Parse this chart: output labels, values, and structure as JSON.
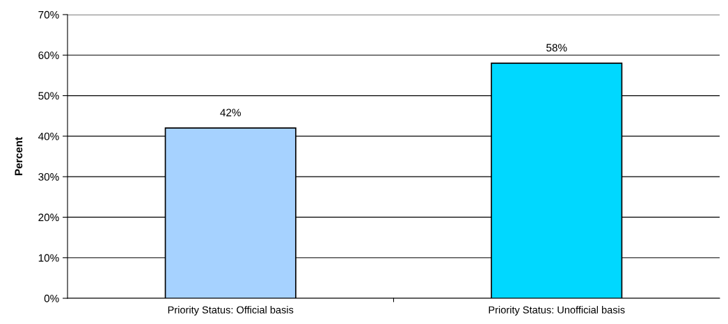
{
  "chart_data": {
    "type": "bar",
    "ylabel": "Percent",
    "categories": [
      "Priority Status: Official basis",
      "Priority Status: Unofficial basis"
    ],
    "values": [
      42,
      58
    ],
    "colors": [
      "#a6d2ff",
      "#00d8ff"
    ],
    "value_labels": [
      "42%",
      "58%"
    ],
    "ylim": [
      0,
      70
    ],
    "yticks": [
      {
        "value": 0,
        "label": "0%"
      },
      {
        "value": 10,
        "label": "10%"
      },
      {
        "value": 20,
        "label": "20%"
      },
      {
        "value": 30,
        "label": "30%"
      },
      {
        "value": 40,
        "label": "40%"
      },
      {
        "value": 50,
        "label": "50%"
      },
      {
        "value": 60,
        "label": "60%"
      },
      {
        "value": 70,
        "label": "70%"
      }
    ],
    "grid": "y",
    "legend": false
  }
}
